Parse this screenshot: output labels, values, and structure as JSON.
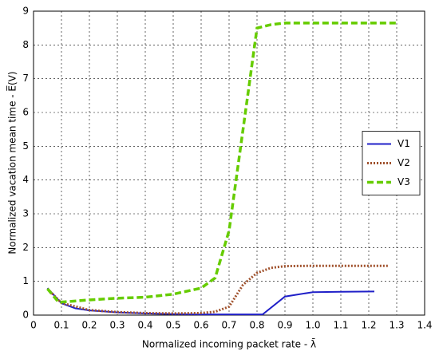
{
  "chart_data": {
    "type": "line",
    "x_label": "Normalized incoming packet rate - λ̄",
    "y_label": "Normalized vacation mean time - E̅(V)",
    "xlim": [
      0,
      1.4
    ],
    "ylim": [
      0,
      9
    ],
    "xticks": [
      0,
      0.1,
      0.2,
      0.3,
      0.4,
      0.5,
      0.6,
      0.7,
      0.8,
      0.9,
      {
        "value": 1,
        "label": "1.0"
      },
      1.1,
      1.2,
      1.3,
      1.4
    ],
    "yticks": [
      0,
      1,
      2,
      3,
      4,
      5,
      6,
      7,
      8,
      9
    ],
    "grid": true,
    "legend": "right",
    "series": [
      {
        "name": "V1",
        "color": "#2020c8",
        "linestyle": "solid",
        "x": [
          0.05,
          0.1,
          0.15,
          0.2,
          0.3,
          0.4,
          0.5,
          0.6,
          0.7,
          0.82,
          0.9,
          1.0,
          1.1,
          1.22
        ],
        "values": [
          0.8,
          0.35,
          0.2,
          0.14,
          0.08,
          0.05,
          0.03,
          0.02,
          0.02,
          0.02,
          0.55,
          0.68,
          0.69,
          0.7
        ]
      },
      {
        "name": "V2",
        "color": "#a0522d",
        "linestyle": "dotted",
        "x": [
          0.05,
          0.1,
          0.2,
          0.3,
          0.4,
          0.5,
          0.6,
          0.65,
          0.7,
          0.75,
          0.8,
          0.85,
          0.9,
          1.0,
          1.27
        ],
        "values": [
          0.78,
          0.36,
          0.15,
          0.09,
          0.06,
          0.05,
          0.06,
          0.1,
          0.25,
          0.9,
          1.25,
          1.4,
          1.45,
          1.46,
          1.46
        ]
      },
      {
        "name": "V3",
        "color": "#66cc00",
        "linestyle": "dashed",
        "x": [
          0.05,
          0.09,
          0.2,
          0.3,
          0.4,
          0.5,
          0.6,
          0.65,
          0.7,
          0.75,
          0.8,
          0.85,
          0.9,
          1.0,
          1.3
        ],
        "values": [
          0.78,
          0.38,
          0.45,
          0.5,
          0.53,
          0.62,
          0.8,
          1.1,
          2.5,
          5.5,
          8.5,
          8.6,
          8.65,
          8.65,
          8.65
        ]
      }
    ]
  }
}
